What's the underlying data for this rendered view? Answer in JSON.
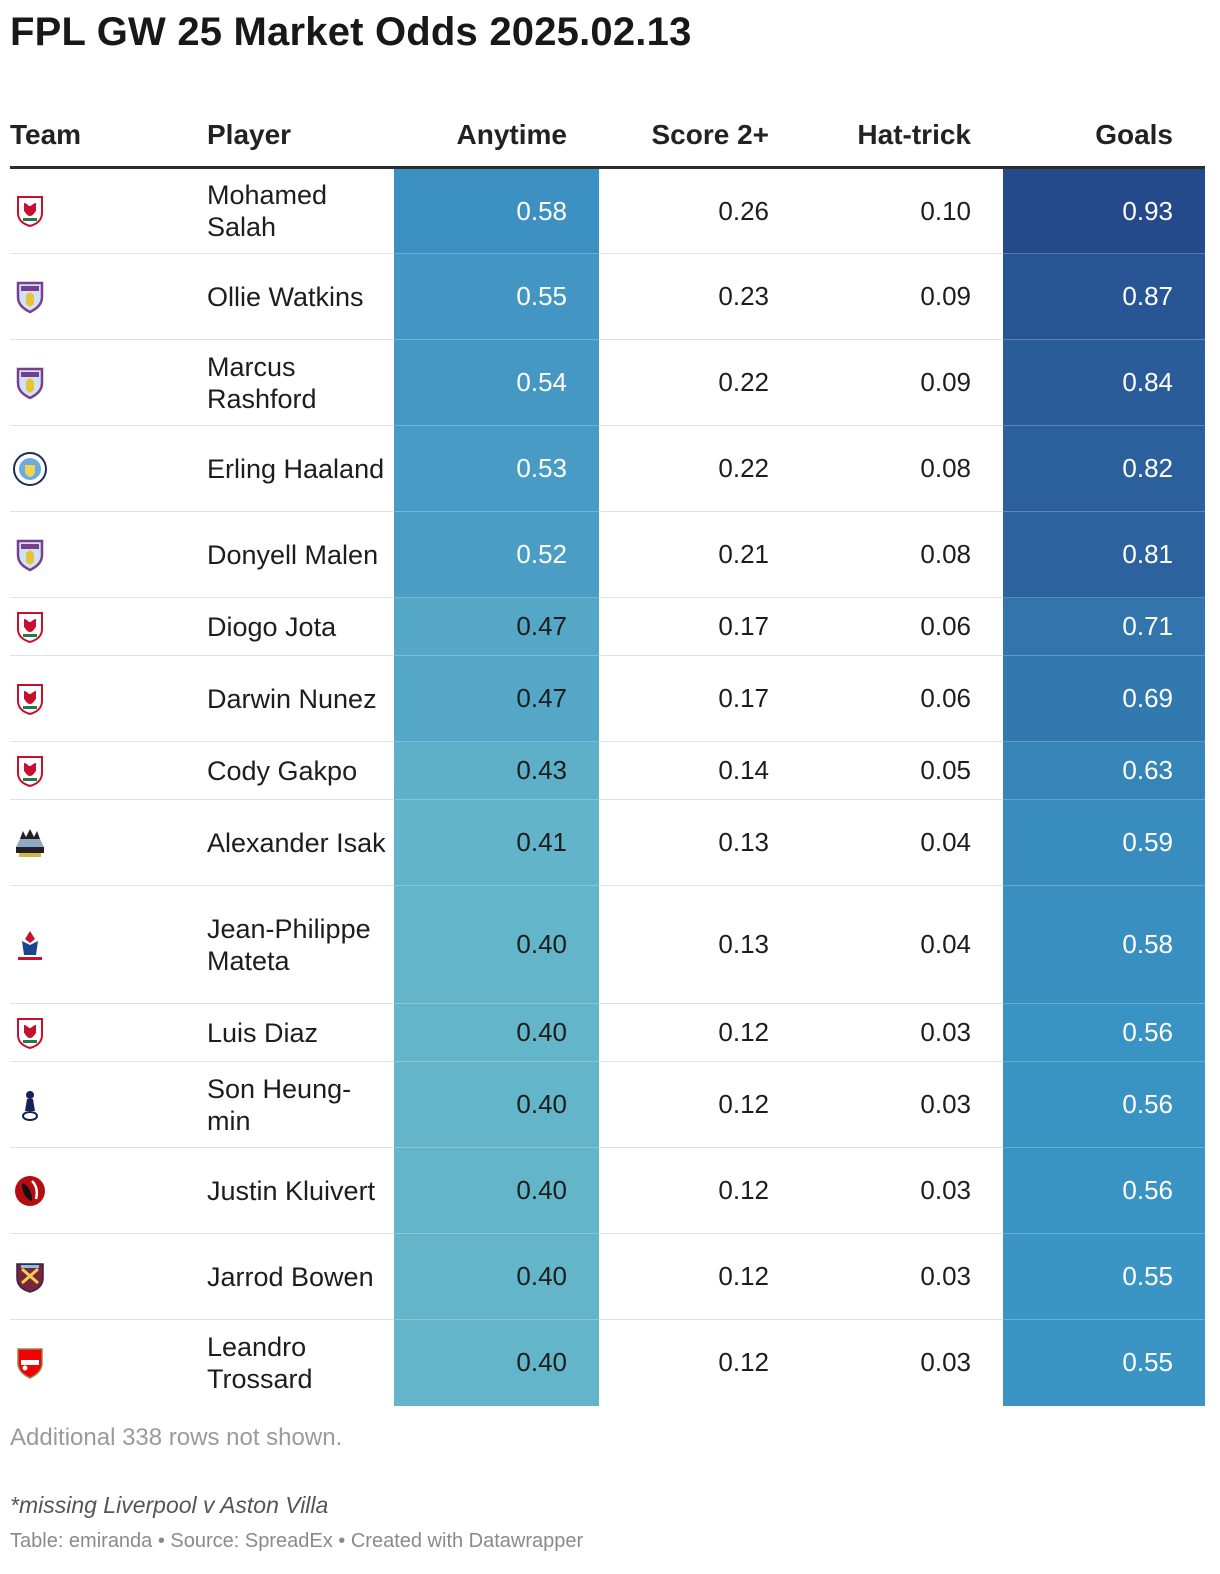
{
  "title": "FPL GW 25 Market Odds 2025.02.13",
  "columns": {
    "team": "Team",
    "player": "Player",
    "anytime": "Anytime",
    "score2": "Score 2+",
    "hattrick": "Hat-trick",
    "goals": "Goals"
  },
  "colors": {
    "anytime_low": "#63b6c9",
    "anytime_high": "#3d90c2",
    "goals_low": "#3a95c4",
    "goals_high": "#254a8c",
    "header_rule": "#2c2c2c",
    "liverpool": "#c8102e",
    "aston_villa": "#7a3e8e",
    "man_city": "#6cabdd",
    "newcastle": "#241f20",
    "crystal_palace": "#1b458f",
    "tottenham": "#132257",
    "bournemouth": "#b50e12",
    "west_ham": "#7a263a",
    "arsenal": "#ef0107"
  },
  "chart_data": {
    "type": "table",
    "title": "FPL GW 25 Market Odds 2025.02.13",
    "rows": [
      {
        "team": "liverpool",
        "team_icon": "liverpool-badge-icon",
        "player": "Mohamed Salah",
        "anytime": "0.58",
        "score2": "0.26",
        "hattrick": "0.10",
        "goals": "0.93"
      },
      {
        "team": "aston-villa",
        "team_icon": "aston-villa-badge-icon",
        "player": "Ollie Watkins",
        "anytime": "0.55",
        "score2": "0.23",
        "hattrick": "0.09",
        "goals": "0.87"
      },
      {
        "team": "aston-villa",
        "team_icon": "aston-villa-badge-icon",
        "player": "Marcus Rashford",
        "anytime": "0.54",
        "score2": "0.22",
        "hattrick": "0.09",
        "goals": "0.84"
      },
      {
        "team": "man-city",
        "team_icon": "man-city-badge-icon",
        "player": "Erling Haaland",
        "anytime": "0.53",
        "score2": "0.22",
        "hattrick": "0.08",
        "goals": "0.82"
      },
      {
        "team": "aston-villa",
        "team_icon": "aston-villa-badge-icon",
        "player": "Donyell Malen",
        "anytime": "0.52",
        "score2": "0.21",
        "hattrick": "0.08",
        "goals": "0.81"
      },
      {
        "team": "liverpool",
        "team_icon": "liverpool-badge-icon",
        "player": "Diogo Jota",
        "anytime": "0.47",
        "score2": "0.17",
        "hattrick": "0.06",
        "goals": "0.71"
      },
      {
        "team": "liverpool",
        "team_icon": "liverpool-badge-icon",
        "player": "Darwin Nunez",
        "anytime": "0.47",
        "score2": "0.17",
        "hattrick": "0.06",
        "goals": "0.69"
      },
      {
        "team": "liverpool",
        "team_icon": "liverpool-badge-icon",
        "player": "Cody Gakpo",
        "anytime": "0.43",
        "score2": "0.14",
        "hattrick": "0.05",
        "goals": "0.63"
      },
      {
        "team": "newcastle",
        "team_icon": "newcastle-badge-icon",
        "player": "Alexander Isak",
        "anytime": "0.41",
        "score2": "0.13",
        "hattrick": "0.04",
        "goals": "0.59"
      },
      {
        "team": "crystal-palace",
        "team_icon": "crystal-palace-badge-icon",
        "player": "Jean-Philippe Mateta",
        "anytime": "0.40",
        "score2": "0.13",
        "hattrick": "0.04",
        "goals": "0.58"
      },
      {
        "team": "liverpool",
        "team_icon": "liverpool-badge-icon",
        "player": "Luis Diaz",
        "anytime": "0.40",
        "score2": "0.12",
        "hattrick": "0.03",
        "goals": "0.56"
      },
      {
        "team": "tottenham",
        "team_icon": "tottenham-badge-icon",
        "player": "Son Heung-min",
        "anytime": "0.40",
        "score2": "0.12",
        "hattrick": "0.03",
        "goals": "0.56"
      },
      {
        "team": "bournemouth",
        "team_icon": "bournemouth-badge-icon",
        "player": "Justin Kluivert",
        "anytime": "0.40",
        "score2": "0.12",
        "hattrick": "0.03",
        "goals": "0.56"
      },
      {
        "team": "west-ham",
        "team_icon": "west-ham-badge-icon",
        "player": "Jarrod Bowen",
        "anytime": "0.40",
        "score2": "0.12",
        "hattrick": "0.03",
        "goals": "0.55"
      },
      {
        "team": "arsenal",
        "team_icon": "arsenal-badge-icon",
        "player": "Leandro Trossard",
        "anytime": "0.40",
        "score2": "0.12",
        "hattrick": "0.03",
        "goals": "0.55"
      }
    ]
  },
  "footnote": "Additional 338 rows not shown.",
  "note": "*missing Liverpool v Aston Villa",
  "credits": "Table: emiranda • Source: SpreadEx • Created with Datawrapper"
}
